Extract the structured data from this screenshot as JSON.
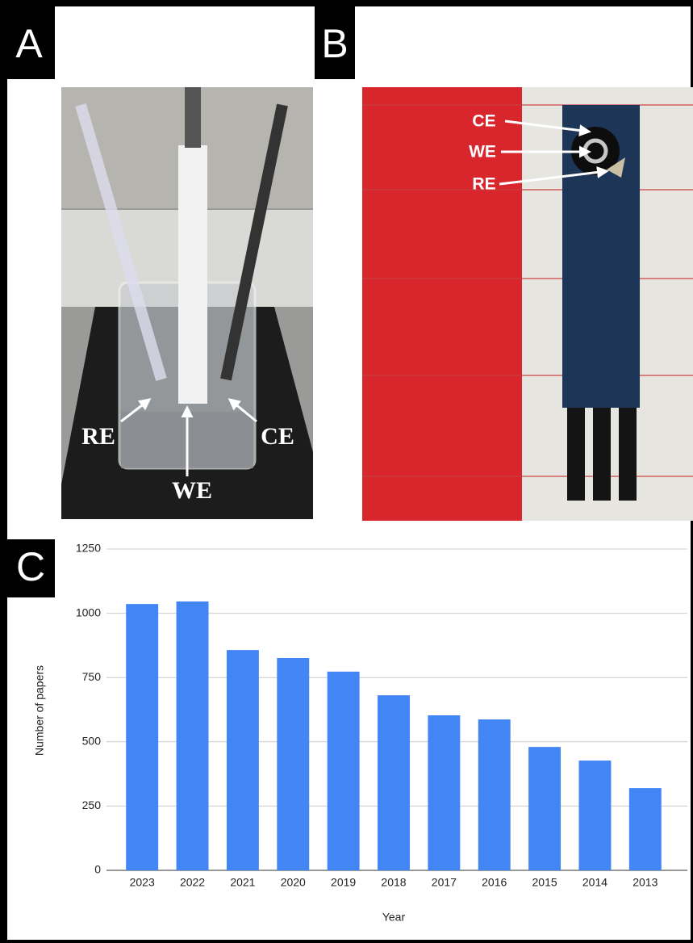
{
  "panel_labels": [
    "A",
    "B",
    "C"
  ],
  "photo_a_labels": [
    "RE",
    "WE",
    "CE"
  ],
  "photo_b_labels": [
    "CE",
    "WE",
    "RE"
  ],
  "chart_data": {
    "type": "bar",
    "categories": [
      "2023",
      "2022",
      "2021",
      "2020",
      "2019",
      "2018",
      "2017",
      "2016",
      "2015",
      "2014",
      "2013"
    ],
    "values": [
      1036,
      1046,
      857,
      826,
      773,
      681,
      603,
      587,
      480,
      427,
      320
    ],
    "color": "#4285f4",
    "ylim": [
      0,
      1250
    ],
    "yticks": [
      0,
      250,
      500,
      750,
      1000,
      1250
    ],
    "grid": true,
    "xlabel": "Year",
    "ylabel": "Number of papers"
  }
}
